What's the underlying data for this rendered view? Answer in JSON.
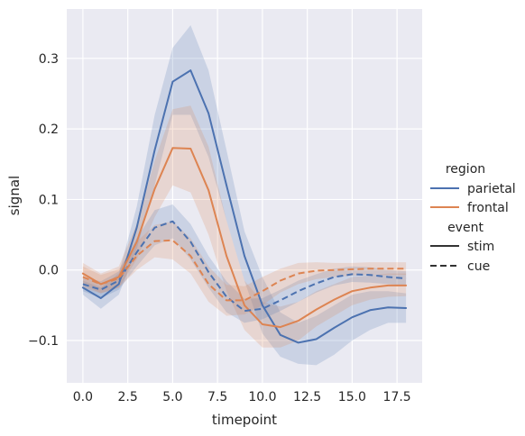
{
  "chart_data": {
    "type": "line",
    "xlabel": "timepoint",
    "ylabel": "signal",
    "xlim": [
      -0.9,
      18.9
    ],
    "ylim": [
      -0.16,
      0.37
    ],
    "x_ticks": [
      0,
      2.5,
      5,
      7.5,
      10,
      12.5,
      15,
      17.5
    ],
    "x_tick_labels": [
      "0.0",
      "2.5",
      "5.0",
      "7.5",
      "10.0",
      "12.5",
      "15.0",
      "17.5"
    ],
    "y_ticks": [
      -0.1,
      0,
      0.1,
      0.2,
      0.3
    ],
    "y_tick_labels": [
      "−0.1",
      "0.0",
      "0.1",
      "0.2",
      "0.3"
    ],
    "grid": true,
    "legend_placement": "right",
    "x": [
      0,
      1,
      2,
      3,
      4,
      5,
      6,
      7,
      8,
      9,
      10,
      11,
      12,
      13,
      14,
      15,
      16,
      17,
      18
    ],
    "series": [
      {
        "name": "parietal-stim",
        "region": "parietal",
        "event": "stim",
        "color": "#4c72b0",
        "dashed": false,
        "values": [
          -0.025,
          -0.04,
          -0.02,
          0.06,
          0.17,
          0.267,
          0.283,
          0.222,
          0.12,
          0.02,
          -0.05,
          -0.092,
          -0.103,
          -0.098,
          -0.082,
          -0.067,
          -0.057,
          -0.053,
          -0.054
        ],
        "ci_low": [
          -0.035,
          -0.055,
          -0.035,
          0.03,
          0.12,
          0.22,
          0.22,
          0.16,
          0.07,
          -0.015,
          -0.09,
          -0.123,
          -0.133,
          -0.135,
          -0.12,
          -0.1,
          -0.085,
          -0.075,
          -0.075
        ],
        "ci_high": [
          -0.015,
          -0.025,
          -0.005,
          0.09,
          0.22,
          0.315,
          0.347,
          0.283,
          0.17,
          0.055,
          -0.01,
          -0.06,
          -0.075,
          -0.065,
          -0.05,
          -0.035,
          -0.03,
          -0.03,
          -0.033
        ]
      },
      {
        "name": "frontal-stim",
        "region": "frontal",
        "event": "stim",
        "color": "#dd8452",
        "dashed": false,
        "values": [
          -0.005,
          -0.02,
          -0.01,
          0.04,
          0.115,
          0.173,
          0.172,
          0.113,
          0.02,
          -0.05,
          -0.077,
          -0.081,
          -0.072,
          -0.056,
          -0.042,
          -0.03,
          -0.025,
          -0.022,
          -0.022
        ],
        "ci_low": [
          -0.02,
          -0.033,
          -0.025,
          0.015,
          0.075,
          0.12,
          0.11,
          0.05,
          -0.03,
          -0.085,
          -0.11,
          -0.11,
          -0.1,
          -0.08,
          -0.065,
          -0.05,
          -0.042,
          -0.038,
          -0.037
        ],
        "ci_high": [
          0.01,
          -0.005,
          0.005,
          0.065,
          0.155,
          0.228,
          0.233,
          0.175,
          0.07,
          -0.015,
          -0.045,
          -0.052,
          -0.045,
          -0.03,
          -0.02,
          -0.01,
          -0.008,
          -0.005,
          -0.005
        ]
      },
      {
        "name": "parietal-cue",
        "region": "parietal",
        "event": "cue",
        "color": "#4c72b0",
        "dashed": true,
        "values": [
          -0.02,
          -0.028,
          -0.015,
          0.025,
          0.06,
          0.069,
          0.04,
          -0.003,
          -0.038,
          -0.058,
          -0.055,
          -0.043,
          -0.03,
          -0.019,
          -0.01,
          -0.006,
          -0.007,
          -0.01,
          -0.012
        ],
        "ci_low": [
          -0.03,
          -0.04,
          -0.028,
          0.005,
          0.035,
          0.045,
          0.015,
          -0.025,
          -0.06,
          -0.075,
          -0.07,
          -0.058,
          -0.045,
          -0.032,
          -0.022,
          -0.017,
          -0.018,
          -0.02,
          -0.022
        ],
        "ci_high": [
          -0.01,
          -0.016,
          -0.002,
          0.045,
          0.085,
          0.093,
          0.065,
          0.02,
          -0.016,
          -0.041,
          -0.04,
          -0.028,
          -0.015,
          -0.006,
          0.002,
          0.005,
          0.004,
          0.0,
          -0.002
        ]
      },
      {
        "name": "frontal-cue",
        "region": "frontal",
        "event": "cue",
        "color": "#dd8452",
        "dashed": true,
        "values": [
          -0.01,
          -0.02,
          -0.012,
          0.02,
          0.041,
          0.042,
          0.02,
          -0.02,
          -0.043,
          -0.043,
          -0.03,
          -0.015,
          -0.005,
          -0.001,
          0.0,
          0.001,
          0.002,
          0.002,
          0.002
        ],
        "ci_low": [
          -0.025,
          -0.033,
          -0.025,
          0.0,
          0.018,
          0.015,
          -0.005,
          -0.045,
          -0.065,
          -0.063,
          -0.05,
          -0.032,
          -0.02,
          -0.013,
          -0.01,
          -0.008,
          -0.007,
          -0.007,
          -0.007
        ],
        "ci_high": [
          0.005,
          -0.007,
          0.001,
          0.04,
          0.064,
          0.069,
          0.045,
          0.005,
          -0.021,
          -0.023,
          -0.01,
          0.002,
          0.01,
          0.011,
          0.01,
          0.01,
          0.011,
          0.011,
          0.011
        ]
      }
    ],
    "legend": {
      "region_title": "region",
      "region_items": [
        {
          "label": "parietal",
          "color": "#4c72b0"
        },
        {
          "label": "frontal",
          "color": "#dd8452"
        }
      ],
      "event_title": "event",
      "event_items": [
        {
          "label": "stim",
          "dashed": false
        },
        {
          "label": "cue",
          "dashed": true
        }
      ]
    },
    "colors": {
      "background": "#eaeaf2",
      "grid": "#ffffff",
      "text": "#262626",
      "neutral_line": "#333333"
    }
  }
}
